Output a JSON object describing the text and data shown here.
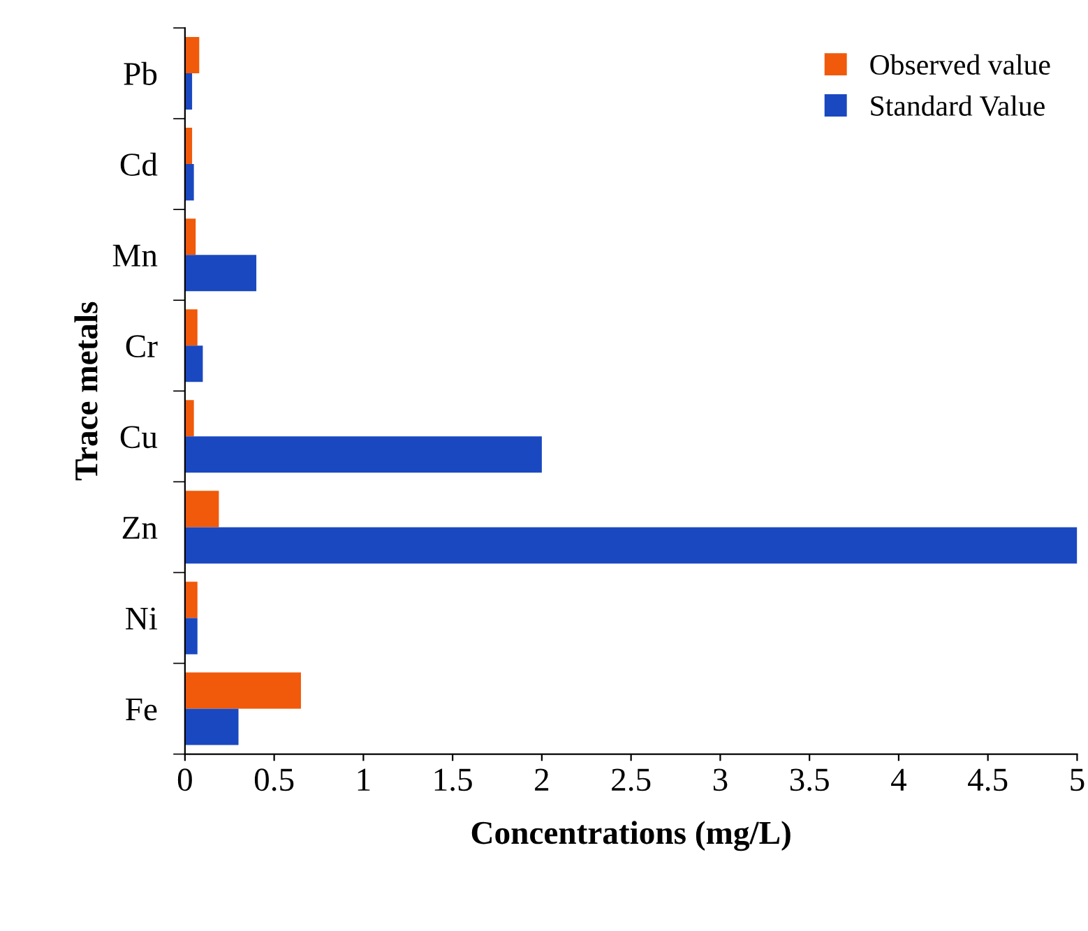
{
  "chart_data": {
    "type": "bar",
    "orientation": "horizontal",
    "xlabel": "Concentrations (mg/L)",
    "ylabel": "Trace metals",
    "categories": [
      "Pb",
      "Cd",
      "Mn",
      "Cr",
      "Cu",
      "Zn",
      "Ni",
      "Fe"
    ],
    "series": [
      {
        "name": "Observed value",
        "color": "#f05a0a",
        "values": [
          0.08,
          0.04,
          0.06,
          0.07,
          0.05,
          0.19,
          0.07,
          0.65
        ]
      },
      {
        "name": "Standard Value",
        "color": "#1a48c0",
        "values": [
          0.04,
          0.05,
          0.4,
          0.1,
          2.0,
          5.0,
          0.07,
          0.3
        ]
      }
    ],
    "xlim": [
      0,
      5
    ],
    "xticks": [
      0,
      0.5,
      1,
      1.5,
      2,
      2.5,
      3,
      3.5,
      4,
      4.5,
      5
    ],
    "grid": false,
    "legend": "top right"
  }
}
